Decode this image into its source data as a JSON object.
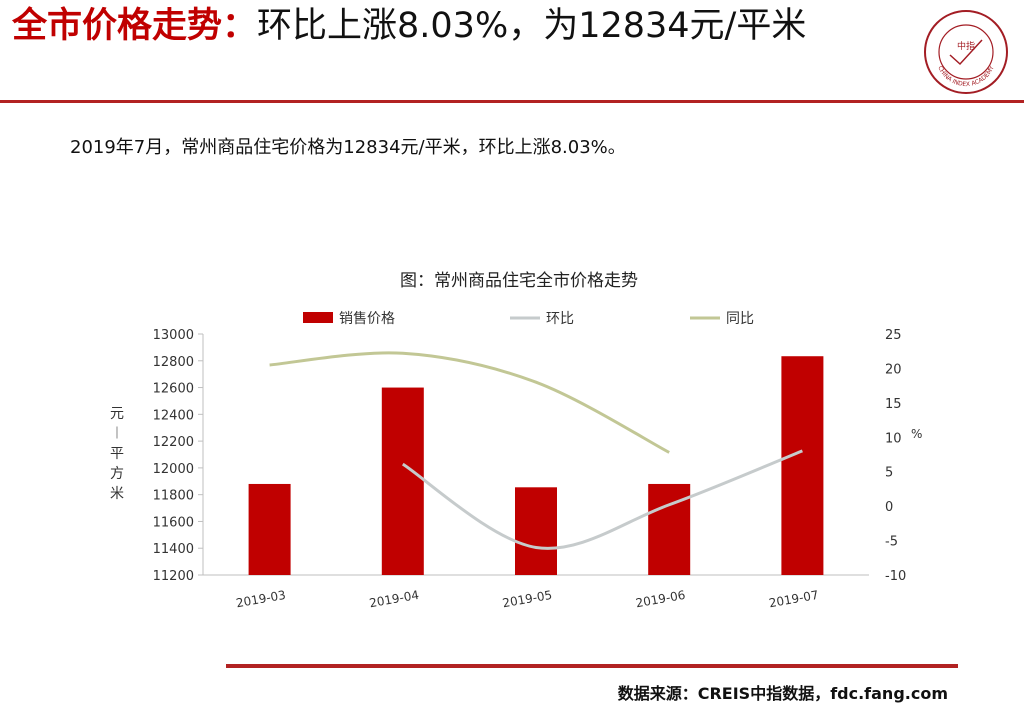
{
  "header": {
    "title_bold": "全市价格走势：",
    "title_rest": "环比上涨8.03%，为12834元/平米"
  },
  "logo": {
    "center_text": "中指",
    "ring_text": "CHINA INDEX ACADEMY",
    "colors": {
      "ring": "#a31d24"
    }
  },
  "summary": "2019年7月，常州商品住宅价格为12834元/平米，环比上涨8.03%。",
  "chart_data": {
    "type": "bar",
    "title": "图：常州商品住宅全市价格走势",
    "categories": [
      "2019-03",
      "2019-04",
      "2019-05",
      "2019-06",
      "2019-07"
    ],
    "series": [
      {
        "name": "销售价格",
        "type": "bar",
        "axis": "left",
        "color": "#c00000",
        "values": [
          11880,
          12600,
          11855,
          11880,
          12834
        ]
      },
      {
        "name": "环比",
        "type": "line",
        "axis": "right",
        "color": "#c6cbcc",
        "values": [
          null,
          6.1,
          -6.0,
          0.2,
          8.03
        ]
      },
      {
        "name": "同比",
        "type": "line",
        "axis": "right",
        "color": "#c2c795",
        "values": [
          20.5,
          22.2,
          18.0,
          7.8,
          null
        ]
      }
    ],
    "y_left": {
      "label": "元/平方米",
      "min": 11200,
      "max": 13000,
      "step": 200
    },
    "y_right": {
      "label": "%",
      "min": -10,
      "max": 25,
      "step": 5
    },
    "legend_position": "top"
  },
  "source": "数据来源：CREIS中指数据，fdc.fang.com"
}
